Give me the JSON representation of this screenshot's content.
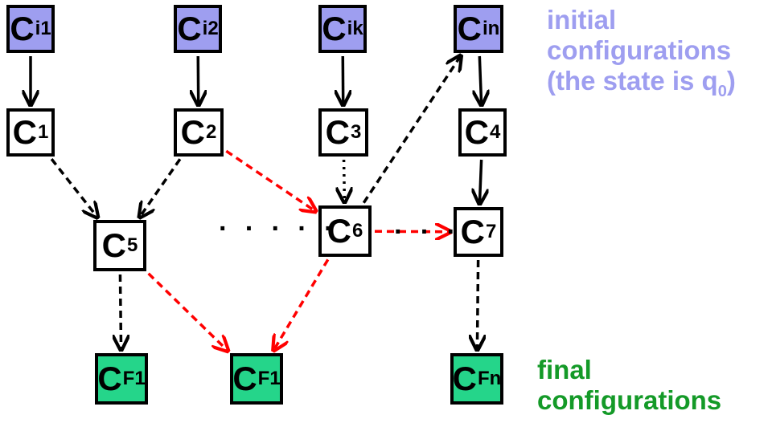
{
  "nodes": {
    "ci1": {
      "main": "C",
      "sub": "i1",
      "kind": "initial"
    },
    "ci2": {
      "main": "C",
      "sub": "i2",
      "kind": "initial"
    },
    "cik": {
      "main": "C",
      "sub": "ik",
      "kind": "initial"
    },
    "cin": {
      "main": "C",
      "sub": "in",
      "kind": "initial"
    },
    "c1": {
      "main": "C",
      "sub": "1",
      "kind": "plain"
    },
    "c2": {
      "main": "C",
      "sub": "2",
      "kind": "plain"
    },
    "c3": {
      "main": "C",
      "sub": "3",
      "kind": "plain"
    },
    "c4": {
      "main": "C",
      "sub": "4",
      "kind": "plain"
    },
    "c5": {
      "main": "C",
      "sub": "5",
      "kind": "plain"
    },
    "c6": {
      "main": "C",
      "sub": "6",
      "kind": "plain"
    },
    "c7": {
      "main": "C",
      "sub": "7",
      "kind": "plain"
    },
    "cf1a": {
      "main": "C",
      "sub": "F1",
      "kind": "final"
    },
    "cf1b": {
      "main": "C",
      "sub": "F1",
      "kind": "final"
    },
    "cfn": {
      "main": "C",
      "sub": "Fn",
      "kind": "final"
    }
  },
  "edges": [
    {
      "from": "ci1",
      "to": "c1",
      "style": "solid",
      "color": "#000000"
    },
    {
      "from": "ci2",
      "to": "c2",
      "style": "solid",
      "color": "#000000"
    },
    {
      "from": "cik",
      "to": "c3",
      "style": "solid",
      "color": "#000000"
    },
    {
      "from": "cin",
      "to": "c4",
      "style": "solid",
      "color": "#000000"
    },
    {
      "from": "c4",
      "to": "c7",
      "style": "solid",
      "color": "#000000"
    },
    {
      "from": "c1",
      "to": "c5",
      "style": "dashed",
      "color": "#000000"
    },
    {
      "from": "c2",
      "to": "c5",
      "style": "dashed",
      "color": "#000000"
    },
    {
      "from": "c3",
      "to": "c6",
      "style": "dotted",
      "color": "#000000"
    },
    {
      "from": "c6",
      "to": "cin",
      "style": "dashed",
      "color": "#000000"
    },
    {
      "from": "c5",
      "to": "cf1a",
      "style": "dashed",
      "color": "#000000"
    },
    {
      "from": "c7",
      "to": "cfn",
      "style": "dashed",
      "color": "#000000"
    },
    {
      "from": "c2",
      "to": "c6",
      "style": "dashed",
      "color": "#ff0000"
    },
    {
      "from": "c6",
      "to": "c7",
      "style": "dashed",
      "color": "#ff0000"
    },
    {
      "from": "c5",
      "to": "cf1b",
      "style": "dashed",
      "color": "#ff0000"
    },
    {
      "from": "c6",
      "to": "cf1b",
      "style": "dashed",
      "color": "#ff0000"
    }
  ],
  "ellipses": {
    "between_c5_c6": "· · · · ·",
    "between_c6_c7": "· · ·"
  },
  "notes": {
    "initial": {
      "line1": "initial",
      "line2": "configurations",
      "line3_text": "(the state is q",
      "line3_sub": "0",
      "line3_end": ")",
      "color": "#9e9ef0"
    },
    "final": {
      "line1": "final",
      "line2": "configurations",
      "color": "#149a28"
    }
  },
  "colors": {
    "initial_fill": "#9e9ef0",
    "final_fill": "#25d58a",
    "plain_fill": "#ffffff",
    "red_edge": "#ff0000",
    "black_edge": "#000000"
  }
}
